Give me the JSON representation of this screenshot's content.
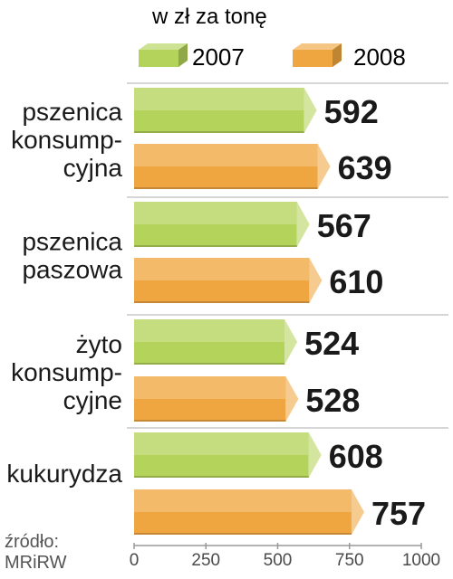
{
  "chart_data": {
    "type": "bar",
    "orientation": "horizontal",
    "subtitle": "w zł za tonę",
    "categories": [
      [
        "pszenica",
        "konsump-",
        "cyjna"
      ],
      [
        "pszenica",
        "paszowa"
      ],
      [
        "żyto",
        "konsump-",
        "cyjne"
      ],
      [
        "kukurydza"
      ]
    ],
    "series": [
      {
        "name": "2007",
        "values": [
          592,
          567,
          524,
          608
        ],
        "color": "#b4d35a"
      },
      {
        "name": "2008",
        "values": [
          639,
          610,
          528,
          757
        ],
        "color": "#f0a640"
      }
    ],
    "xlim": [
      0,
      1000
    ],
    "xticks": [
      "0",
      "250",
      "500",
      "750",
      "1000"
    ],
    "data_labels": true,
    "legend": "top",
    "grid": false,
    "source": [
      "źródło:",
      "MRiRW"
    ]
  }
}
